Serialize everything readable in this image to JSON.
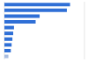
{
  "chart_data": {
    "type": "bar",
    "orientation": "horizontal",
    "categories": [
      null,
      null,
      null,
      null,
      null,
      null,
      null,
      null,
      null,
      null
    ],
    "values": [
      82,
      78,
      44,
      39,
      12,
      11,
      10,
      9,
      8,
      5
    ],
    "colors": [
      "#2f6fd6",
      "#2f6fd6",
      "#2f6fd6",
      "#2f6fd6",
      "#2f6fd6",
      "#2f6fd6",
      "#2f6fd6",
      "#2f6fd6",
      "#2f6fd6",
      "#a9bde0"
    ],
    "xlim": [
      0,
      100
    ],
    "xticks": [
      0,
      25,
      50,
      75,
      100
    ],
    "grid": true,
    "tick_labels": false
  }
}
